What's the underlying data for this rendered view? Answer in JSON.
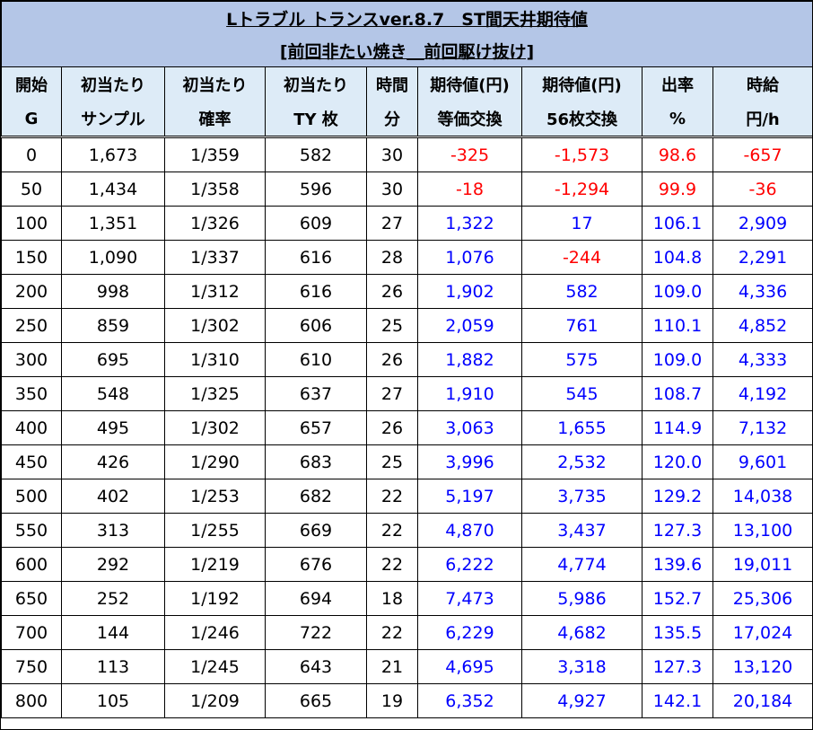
{
  "title": "Lトラブル トランスver.8.7　ST間天井期待値",
  "subtitle": "[前回非たい焼き＿前回駆け抜け]",
  "headers": [
    [
      "開始",
      "G"
    ],
    [
      "初当たり",
      "サンプル"
    ],
    [
      "初当たり",
      "確率"
    ],
    [
      "初当たり",
      "TY 枚"
    ],
    [
      "時間",
      "分"
    ],
    [
      "期待値(円)",
      "等価交換"
    ],
    [
      "期待値(円)",
      "56枚交換"
    ],
    [
      "出率",
      "%"
    ],
    [
      "時給",
      "円/h"
    ]
  ],
  "colors": {
    "title_bg": "#b4c6e7",
    "header_bg": "#ddebf7",
    "positive": "#0000ff",
    "negative": "#ff0000"
  },
  "rows": [
    [
      "0",
      "1,673",
      "1/359",
      "582",
      "30",
      "-325",
      "-1,573",
      "98.6",
      "-657"
    ],
    [
      "50",
      "1,434",
      "1/358",
      "596",
      "30",
      "-18",
      "-1,294",
      "99.9",
      "-36"
    ],
    [
      "100",
      "1,351",
      "1/326",
      "609",
      "27",
      "1,322",
      "17",
      "106.1",
      "2,909"
    ],
    [
      "150",
      "1,090",
      "1/337",
      "616",
      "28",
      "1,076",
      "-244",
      "104.8",
      "2,291"
    ],
    [
      "200",
      "998",
      "1/312",
      "616",
      "26",
      "1,902",
      "582",
      "109.0",
      "4,336"
    ],
    [
      "250",
      "859",
      "1/302",
      "606",
      "25",
      "2,059",
      "761",
      "110.1",
      "4,852"
    ],
    [
      "300",
      "695",
      "1/310",
      "610",
      "26",
      "1,882",
      "575",
      "109.0",
      "4,333"
    ],
    [
      "350",
      "548",
      "1/325",
      "637",
      "27",
      "1,910",
      "545",
      "108.7",
      "4,192"
    ],
    [
      "400",
      "495",
      "1/302",
      "657",
      "26",
      "3,063",
      "1,655",
      "114.9",
      "7,132"
    ],
    [
      "450",
      "426",
      "1/290",
      "683",
      "25",
      "3,996",
      "2,532",
      "120.0",
      "9,601"
    ],
    [
      "500",
      "402",
      "1/253",
      "682",
      "22",
      "5,197",
      "3,735",
      "129.2",
      "14,038"
    ],
    [
      "550",
      "313",
      "1/255",
      "669",
      "22",
      "4,870",
      "3,437",
      "127.3",
      "13,100"
    ],
    [
      "600",
      "292",
      "1/219",
      "676",
      "22",
      "6,222",
      "4,774",
      "139.6",
      "19,011"
    ],
    [
      "650",
      "252",
      "1/192",
      "694",
      "18",
      "7,473",
      "5,986",
      "152.7",
      "25,306"
    ],
    [
      "700",
      "144",
      "1/246",
      "722",
      "22",
      "6,229",
      "4,682",
      "135.5",
      "17,024"
    ],
    [
      "750",
      "113",
      "1/245",
      "643",
      "21",
      "4,695",
      "3,318",
      "127.3",
      "13,120"
    ],
    [
      "800",
      "105",
      "1/209",
      "665",
      "19",
      "6,352",
      "4,927",
      "142.1",
      "20,184"
    ]
  ]
}
